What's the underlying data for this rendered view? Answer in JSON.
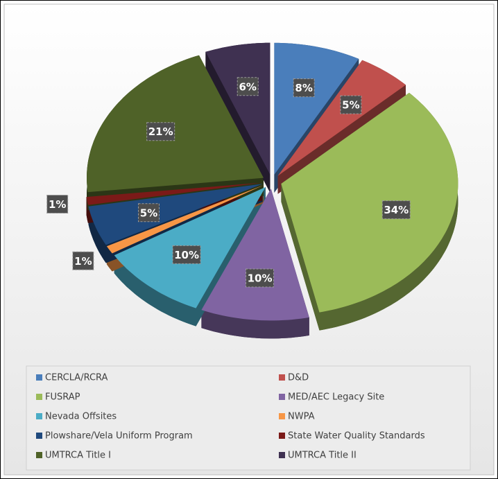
{
  "chart_data": {
    "type": "pie",
    "categories": [
      "CERCLA/RCRA",
      "D&D",
      "FUSRAP",
      "MED/AEC Legacy Site",
      "Nevada Offsites",
      "NWPA",
      "Plowshare/Vela Uniform Program",
      "State Water Quality Standards",
      "UMTRCA Title I",
      "UMTRCA Title II"
    ],
    "values": [
      8,
      5,
      34,
      10,
      10,
      1,
      5,
      1,
      21,
      6
    ],
    "value_labels": [
      "8%",
      "5%",
      "34%",
      "10%",
      "10%",
      "1%",
      "5%",
      "1%",
      "21%",
      "6%"
    ],
    "colors": [
      "#4a7ebb",
      "#c0504d",
      "#9bbb59",
      "#8064a2",
      "#4bacc6",
      "#f79646",
      "#1f497d",
      "#7b1a18",
      "#4f6228",
      "#3f3151"
    ],
    "legend": "bottom"
  }
}
